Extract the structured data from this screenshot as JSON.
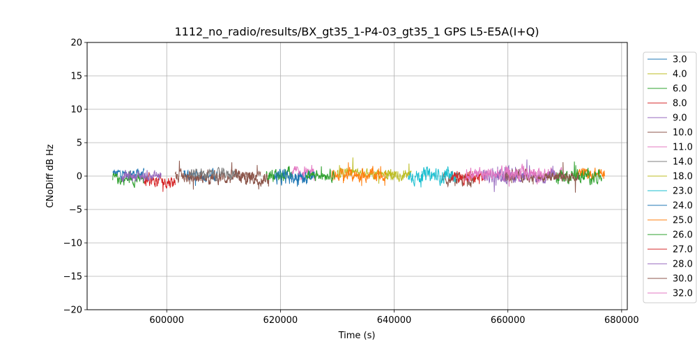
{
  "chart_data": {
    "type": "line",
    "title": "1112_no_radio/results/BX_gt35_1-P4-03_gt35_1 GPS L5-E5A(I+Q)",
    "xlabel": "Time (s)",
    "ylabel": "CNoDiff dB Hz",
    "xlim": [
      586000,
      681000
    ],
    "ylim": [
      -20,
      20
    ],
    "xticks": [
      600000,
      620000,
      640000,
      660000,
      680000
    ],
    "yticks": [
      -20,
      -15,
      -10,
      -5,
      0,
      5,
      10,
      15,
      20
    ],
    "xtick_labels": [
      "600000",
      "620000",
      "640000",
      "660000",
      "680000"
    ],
    "ytick_labels": [
      "−20",
      "−15",
      "−10",
      "−5",
      "0",
      "5",
      "10",
      "15",
      "20"
    ],
    "grid": true,
    "legend_position": "right-outside",
    "series": [
      {
        "name": "3.0",
        "color": "#1f77b4",
        "segments": [
          [
            590500,
            596000,
            0.4,
            0.6
          ],
          [
            603000,
            609000,
            0.1,
            0.8
          ]
        ]
      },
      {
        "name": "4.0",
        "color": "#bcbd22",
        "segments": [
          [
            630000,
            640000,
            0.5,
            0.6
          ]
        ]
      },
      {
        "name": "6.0",
        "color": "#2ca02c",
        "segments": [
          [
            590500,
            596500,
            -0.5,
            0.8
          ],
          [
            617500,
            622000,
            0.3,
            0.9
          ]
        ]
      },
      {
        "name": "8.0",
        "color": "#d62728",
        "segments": [
          [
            596000,
            601500,
            -0.8,
            0.9
          ]
        ]
      },
      {
        "name": "9.0",
        "color": "#9467bd",
        "segments": [
          [
            592000,
            599000,
            0.0,
            0.8
          ],
          [
            659000,
            663000,
            0.2,
            0.9
          ]
        ]
      },
      {
        "name": "10.0",
        "color": "#8c564b",
        "segments": [
          [
            601500,
            616500,
            -0.2,
            0.9
          ],
          [
            648500,
            654000,
            -0.6,
            0.8
          ]
        ]
      },
      {
        "name": "11.0",
        "color": "#e377c2",
        "segments": [
          [
            622000,
            626000,
            0.5,
            0.9
          ],
          [
            665000,
            670000,
            0.1,
            0.9
          ]
        ]
      },
      {
        "name": "14.0",
        "color": "#7f7f7f",
        "segments": [
          [
            604000,
            612500,
            0.3,
            0.7
          ]
        ]
      },
      {
        "name": "18.0",
        "color": "#bcbd22",
        "segments": [
          [
            638500,
            643000,
            0.2,
            0.8
          ]
        ]
      },
      {
        "name": "23.0",
        "color": "#17becf",
        "segments": [
          [
            642500,
            651000,
            0.0,
            1.0
          ]
        ]
      },
      {
        "name": "24.0",
        "color": "#1f77b4",
        "segments": [
          [
            619000,
            626000,
            -0.2,
            1.0
          ]
        ]
      },
      {
        "name": "25.0",
        "color": "#ff7f0e",
        "segments": [
          [
            629000,
            638500,
            0.2,
            0.9
          ],
          [
            672000,
            677000,
            0.3,
            0.8
          ]
        ]
      },
      {
        "name": "26.0",
        "color": "#2ca02c",
        "segments": [
          [
            668500,
            676500,
            0.0,
            0.9
          ],
          [
            624500,
            629500,
            0.3,
            0.8
          ]
        ]
      },
      {
        "name": "27.0",
        "color": "#d62728",
        "segments": [
          [
            650000,
            656000,
            -0.2,
            0.9
          ]
        ]
      },
      {
        "name": "28.0",
        "color": "#9467bd",
        "segments": [
          [
            655500,
            668500,
            0.0,
            0.9
          ]
        ]
      },
      {
        "name": "30.0",
        "color": "#8c564b",
        "segments": [
          [
            612000,
            618000,
            -0.3,
            0.9
          ],
          [
            659500,
            672500,
            0.0,
            0.8
          ]
        ]
      },
      {
        "name": "32.0",
        "color": "#e377c2",
        "segments": [
          [
            652500,
            666000,
            0.3,
            1.0
          ]
        ]
      }
    ]
  }
}
